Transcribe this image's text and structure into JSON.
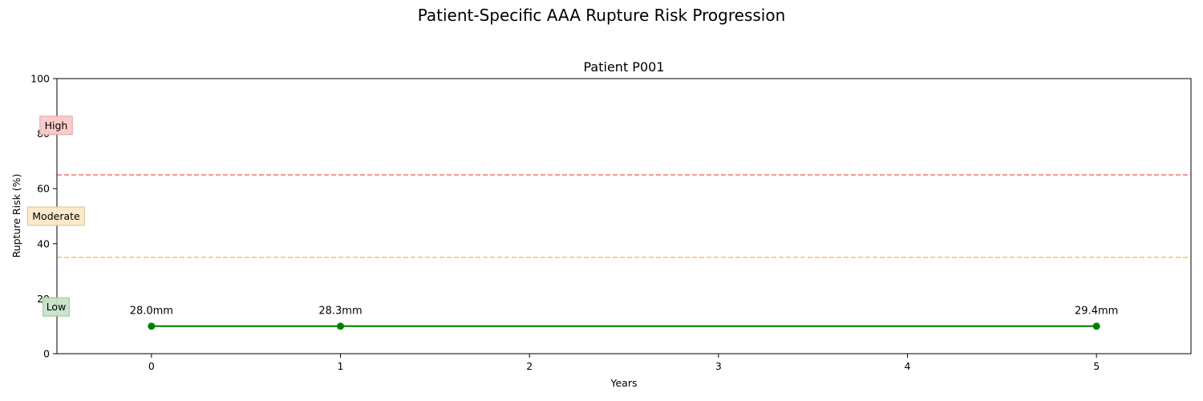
{
  "figure": {
    "suptitle": "Patient-Specific AAA Rupture Risk Progression"
  },
  "chart_data": {
    "type": "line",
    "title": "Patient P001",
    "xlabel": "Years",
    "ylabel": "Rupture Risk (%)",
    "xlim": [
      -0.5,
      5.5
    ],
    "ylim": [
      0,
      100
    ],
    "xticks": [
      0,
      1,
      2,
      3,
      4,
      5
    ],
    "yticks": [
      0,
      20,
      40,
      60,
      80,
      100
    ],
    "grid": false,
    "series": [
      {
        "x": [
          0,
          1,
          5
        ],
        "y": [
          10,
          10,
          10
        ],
        "labels": [
          "28.0mm",
          "28.3mm",
          "29.4mm"
        ],
        "color": "#008000"
      }
    ],
    "thresholds": [
      {
        "y": 35,
        "color": "#f5c96a"
      },
      {
        "y": 65,
        "color": "#f08080"
      }
    ],
    "zones": [
      {
        "label": "Low",
        "y": 17,
        "bg": "#c8e3c8",
        "border": "#9fbf9f"
      },
      {
        "label": "Moderate",
        "y": 50,
        "bg": "#fde8c8",
        "border": "#d9c39a"
      },
      {
        "label": "High",
        "y": 83,
        "bg": "#fcc8c8",
        "border": "#d9a3a3"
      }
    ]
  }
}
